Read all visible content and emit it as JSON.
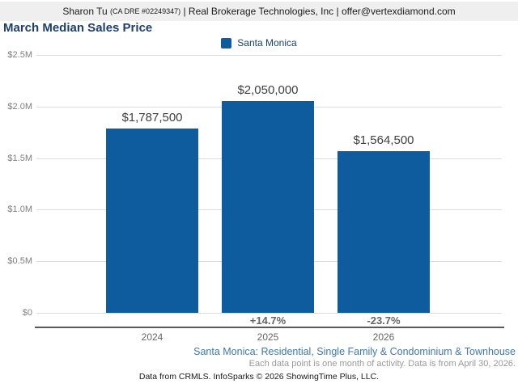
{
  "header": {
    "agent_name": "Sharon Tu",
    "license": "(CA DRE #02249347)",
    "separator": "|",
    "company": "Real Brokerage Technologies, Inc",
    "email": "offer@vertexdiamond.com"
  },
  "title": "March Median Sales Price",
  "legend": {
    "label": "Santa Monica",
    "color": "#0e5c9d"
  },
  "chart_data": {
    "type": "bar",
    "title": "March Median Sales Price",
    "series_name": "Santa Monica",
    "categories": [
      "2024",
      "2025",
      "2026"
    ],
    "values": [
      1787500,
      2050000,
      1564500
    ],
    "value_labels": [
      "$1,787,500",
      "$2,050,000",
      "$1,564,500"
    ],
    "pct_change": [
      "",
      "+14.7%",
      "-23.7%"
    ],
    "yticks": [
      "$2.5M",
      "$2.0M",
      "$1.5M",
      "$1.0M",
      "$0.5M",
      "$0"
    ],
    "ylim": [
      0,
      2500000
    ],
    "bar_color": "#0e5c9d",
    "grid": true,
    "legend_position": "top"
  },
  "footnotes": {
    "segment": "Santa Monica: Residential, Single Family & Condominium & Townhouse",
    "data_note": "Each data point is one month of activity. Data is from April 30, 2026.",
    "attribution": "Data from CRMLS. InfoSparks © 2026 ShowingTime Plus, LLC."
  }
}
